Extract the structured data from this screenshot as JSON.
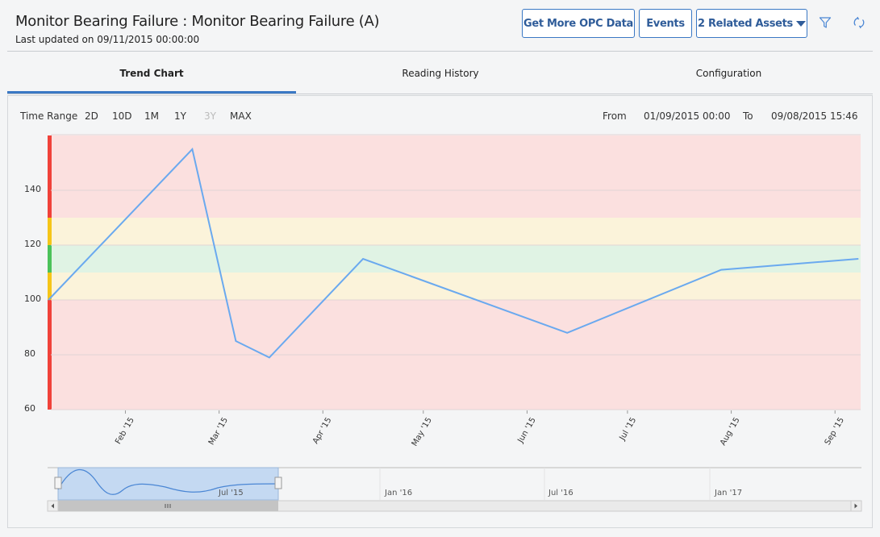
{
  "header": {
    "title": "Monitor Bearing Failure : Monitor Bearing Failure (A)",
    "subtitle": "Last updated on 09/11/2015 00:00:00",
    "buttons": {
      "opc": "Get More OPC Data",
      "events": "Events",
      "related": "2 Related Assets"
    },
    "icons": [
      "filter-icon",
      "refresh-icon"
    ]
  },
  "tabs": [
    {
      "label": "Trend Chart",
      "active": true
    },
    {
      "label": "Reading History",
      "active": false
    },
    {
      "label": "Configuration",
      "active": false
    }
  ],
  "toolbar": {
    "time_range_label": "Time Range",
    "ranges": [
      {
        "label": "2D",
        "enabled": true
      },
      {
        "label": "10D",
        "enabled": true
      },
      {
        "label": "1M",
        "enabled": true
      },
      {
        "label": "1Y",
        "enabled": true
      },
      {
        "label": "3Y",
        "enabled": false
      },
      {
        "label": "MAX",
        "enabled": true
      }
    ],
    "from_label": "From",
    "from_value": "01/09/2015 00:00",
    "to_label": "To",
    "to_value": "09/08/2015 15:46"
  },
  "chart_data": {
    "type": "line",
    "title": "",
    "xlabel": "",
    "ylabel": "",
    "ylim": [
      60,
      160
    ],
    "y_ticks": [
      60,
      80,
      100,
      120,
      140
    ],
    "x_ticks": [
      "Feb '15",
      "Mar '15",
      "Apr '15",
      "May '15",
      "Jun '15",
      "Jul '15",
      "Aug '15",
      "Sep '15"
    ],
    "series": [
      {
        "color": "#6aa9ef",
        "points": [
          {
            "x": "2015-01-09",
            "y": 100
          },
          {
            "x": "2015-02-21",
            "y": 155
          },
          {
            "x": "2015-03-06",
            "y": 85
          },
          {
            "x": "2015-03-16",
            "y": 79
          },
          {
            "x": "2015-04-13",
            "y": 115
          },
          {
            "x": "2015-06-13",
            "y": 88
          },
          {
            "x": "2015-07-29",
            "y": 111
          },
          {
            "x": "2015-09-08",
            "y": 115
          }
        ]
      }
    ],
    "bands": [
      {
        "from": 130,
        "to": 160,
        "color": "#fbe0df",
        "edge": "#f0423a"
      },
      {
        "from": 120,
        "to": 130,
        "color": "#fbf3da",
        "edge": "#f5c518"
      },
      {
        "from": 110,
        "to": 120,
        "color": "#e0f3e4",
        "edge": "#4cc25a"
      },
      {
        "from": 100,
        "to": 110,
        "color": "#fbf3da",
        "edge": "#f5c518"
      },
      {
        "from": 60,
        "to": 100,
        "color": "#fbe0df",
        "edge": "#f0423a"
      }
    ],
    "grid": true,
    "legend": "none"
  },
  "navigator": {
    "labels": [
      "Jul '15",
      "Jan '16",
      "Jul '16",
      "Jan '17"
    ]
  }
}
